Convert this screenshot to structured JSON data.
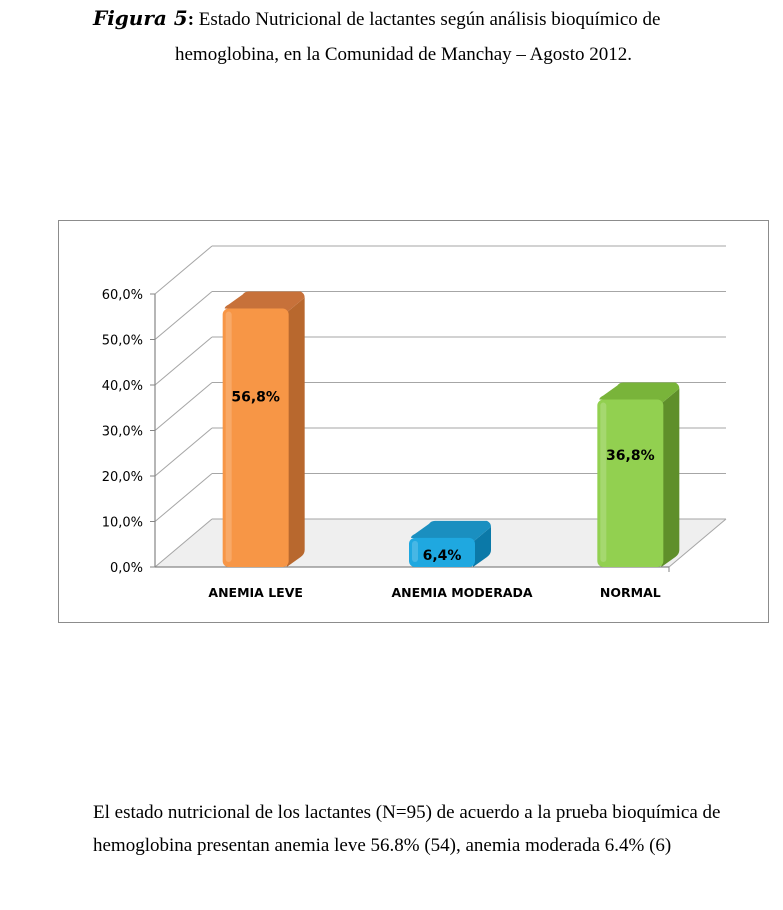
{
  "caption": {
    "figure_label": "Figura 5",
    "colon": ":",
    "line1_text": " Estado Nutricional de lactantes según análisis bioquímico de",
    "line2_text": "hemoglobina, en la Comunidad de Manchay – Agosto 2012."
  },
  "chart_data": {
    "type": "bar",
    "style": "3d-column",
    "categories": [
      "ANEMIA LEVE",
      "ANEMIA MODERADA",
      "NORMAL"
    ],
    "values": [
      56.8,
      6.4,
      36.8
    ],
    "value_labels": [
      "56,8%",
      "6,4%",
      "36,8%"
    ],
    "colors": [
      "#f79646",
      "#1fa8e0",
      "#92d050"
    ],
    "side_colors": [
      "#b8682e",
      "#0b79a8",
      "#5f8f2a"
    ],
    "top_colors": [
      "#c7713a",
      "#1a8fc0",
      "#79b43a"
    ],
    "ylim": [
      0,
      60
    ],
    "y_ticks": [
      "0,0%",
      "10,0%",
      "20,0%",
      "30,0%",
      "40,0%",
      "50,0%",
      "60,0%"
    ],
    "grid": true,
    "legend": "none",
    "title": "",
    "xlabel": "",
    "ylabel": ""
  },
  "body": {
    "line1": "El estado nutricional de los lactantes (N=95) de acuerdo a la prueba bioquímica de",
    "line2": "hemoglobina presentan anemia leve 56.8% (54), anemia moderada 6.4% (6)"
  }
}
